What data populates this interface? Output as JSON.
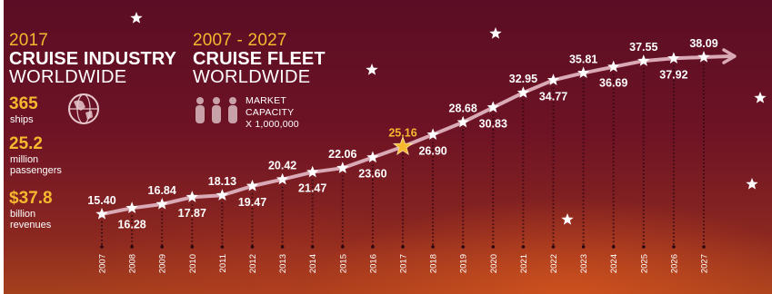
{
  "left_panel": {
    "year": "2017",
    "title_line1": "CRUISE INDUSTRY",
    "title_line2": "WORLDWIDE",
    "ships_value": "365",
    "ships_label": "ships",
    "passengers_value": "25.2",
    "passengers_label_line1": "million",
    "passengers_label_line2": "passengers",
    "revenues_value": "$37.8",
    "revenues_label_line1": "billion",
    "revenues_label_line2": "revenues",
    "globe_icon": "globe-icon"
  },
  "fleet_panel": {
    "years": "2007 - 2027",
    "title_line1": "CRUISE FLEET",
    "title_line2": "WORLDWIDE",
    "legend_line1": "MARKET",
    "legend_line2": "CAPACITY",
    "legend_line3": "X 1,000,000",
    "legend_icon": "people-icon"
  },
  "colors": {
    "accent": "#f5b82e",
    "line": "#d9a9b6",
    "text": "#ffffff",
    "background_top": "#5a0d24",
    "background_bottom": "#a5401d"
  },
  "chart_data": {
    "type": "line",
    "x": [
      "2007",
      "2008",
      "2009",
      "2010",
      "2011",
      "2012",
      "2013",
      "2014",
      "2015",
      "2016",
      "2017",
      "2018",
      "2019",
      "2020",
      "2021",
      "2022",
      "2023",
      "2024",
      "2025",
      "2026",
      "2027"
    ],
    "values": [
      15.4,
      16.28,
      16.84,
      17.87,
      18.13,
      19.47,
      20.42,
      21.47,
      22.06,
      23.6,
      25.16,
      26.9,
      28.68,
      30.83,
      32.95,
      34.77,
      35.81,
      36.69,
      37.55,
      37.92,
      38.09
    ],
    "labels": [
      "15.40",
      "16.28",
      "16.84",
      "17.87",
      "18.13",
      "19.47",
      "20.42",
      "21.47",
      "22.06",
      "23.60",
      "25.16",
      "26.90",
      "28.68",
      "30.83",
      "32.95",
      "34.77",
      "35.81",
      "36.69",
      "37.55",
      "37.92",
      "38.09"
    ],
    "label_position": [
      "above",
      "below",
      "above",
      "below",
      "above",
      "below",
      "above",
      "below",
      "above",
      "below",
      "above",
      "below",
      "above",
      "below",
      "above",
      "below",
      "above",
      "below",
      "above",
      "below",
      "above"
    ],
    "highlight_year": "2017",
    "xlabel": "",
    "ylabel": "",
    "marker": "star",
    "grid": false,
    "end_arrow": true
  }
}
